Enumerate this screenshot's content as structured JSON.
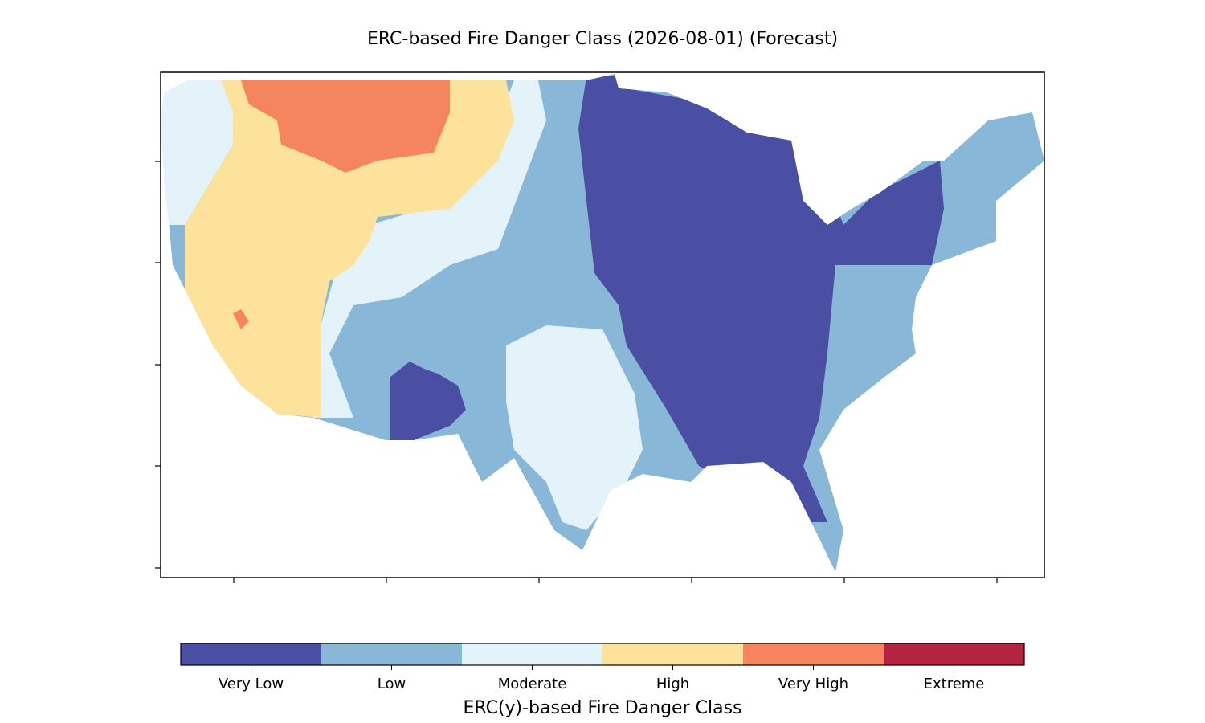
{
  "chart_data": {
    "type": "map",
    "title": "ERC-based Fire Danger Class (2026-08-01) (Forecast)",
    "legend": {
      "title": "ERC(y)-based Fire Danger Class",
      "categories": [
        "Very Low",
        "Low",
        "Moderate",
        "High",
        "Very High",
        "Extreme"
      ],
      "colors": [
        "#4a4fa3",
        "#89b7d7",
        "#e4f3f9",
        "#fde29c",
        "#f4855f",
        "#b2243f"
      ]
    }
  }
}
